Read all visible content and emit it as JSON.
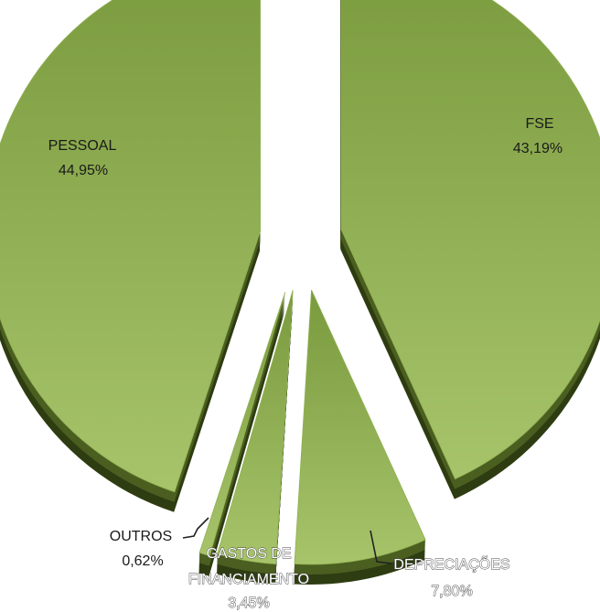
{
  "chart_data": {
    "type": "pie",
    "style": "exploded-3d",
    "title": "",
    "colors": {
      "top_light": "#a7c46a",
      "top_dark": "#7a9a3e",
      "side": "#4b5f21",
      "side_dark": "#2f3d12"
    },
    "slices": [
      {
        "label": "FSE",
        "value_label": "43,19%",
        "value": 43.19
      },
      {
        "label": "DEPRECIAÇÕES",
        "value_label": "7,80%",
        "value": 7.8
      },
      {
        "label": "GASTOS DE FINANCIAMENTO",
        "label_lines": [
          "GASTOS DE",
          "FINANCIAMENTO"
        ],
        "value_label": "3,45%",
        "value": 3.45
      },
      {
        "label": "OUTROS",
        "value_label": "0,62%",
        "value": 0.62
      },
      {
        "label": "PESSOAL",
        "value_label": "44,95%",
        "value": 44.95
      }
    ]
  }
}
